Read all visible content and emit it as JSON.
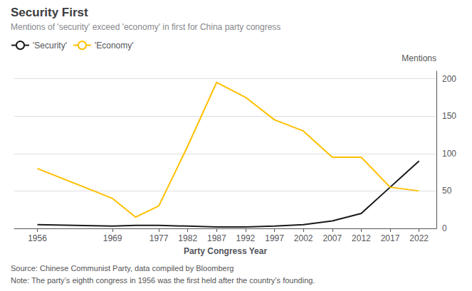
{
  "chart_data": {
    "type": "line",
    "title": "Security First",
    "subtitle": "Mentions of 'security' exceed 'economy' in first for China party congress",
    "xlabel": "Party Congress Year",
    "ylabel": "Mentions",
    "source": "Source: Chinese Communist Party, data compiled by Bloomberg",
    "note": "Note: The party’s eighth congress in 1956 was the first held after the country’s founding.",
    "x": [
      1956,
      1969,
      1973,
      1977,
      1982,
      1987,
      1992,
      1997,
      2002,
      2007,
      2012,
      2017,
      2022
    ],
    "series": [
      {
        "name": "'Security'",
        "color": "#1a1a1a",
        "values": [
          5,
          3,
          4,
          4,
          3,
          2,
          2,
          3,
          5,
          10,
          20,
          55,
          90
        ]
      },
      {
        "name": "'Economy'",
        "color": "#FFC000",
        "values": [
          80,
          40,
          15,
          30,
          110,
          195,
          175,
          145,
          130,
          95,
          95,
          55,
          50
        ]
      }
    ],
    "xlim": [
      1952,
      2025
    ],
    "xticks": [
      1956,
      1969,
      1977,
      1982,
      1987,
      1992,
      1997,
      2002,
      2007,
      2012,
      2017,
      2022
    ],
    "ylim": [
      0,
      210
    ],
    "yticks": [
      0,
      50,
      100,
      150,
      200
    ],
    "grid": true,
    "legend": "top-left"
  }
}
